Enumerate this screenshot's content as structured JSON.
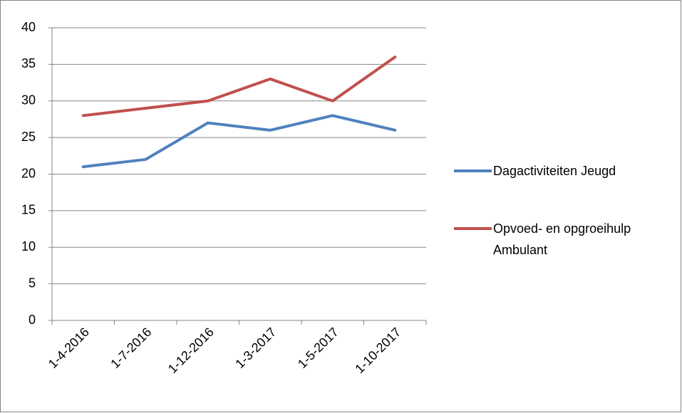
{
  "chart_data": {
    "type": "line",
    "categories": [
      "1-4-2016",
      "1-7-2016",
      "1-12-2016",
      "1-3-2017",
      "1-5-2017",
      "1-10-2017"
    ],
    "series": [
      {
        "name": "Dagactiviteiten Jeugd",
        "color": "#4f81bd",
        "values": [
          21,
          22,
          27,
          26,
          28,
          26
        ]
      },
      {
        "name": "Opvoed- en opgroeihulp Ambulant",
        "color": "#c0504d",
        "values": [
          28,
          29,
          30,
          33,
          30,
          36
        ]
      }
    ],
    "ylim": [
      0,
      40
    ],
    "yticks": [
      0,
      5,
      10,
      15,
      20,
      25,
      30,
      35,
      40
    ],
    "grid": true,
    "legend": "right"
  }
}
